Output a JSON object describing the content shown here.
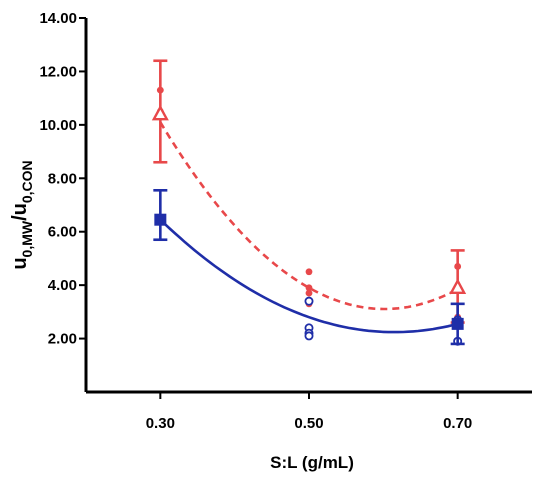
{
  "chart_data": {
    "type": "scatter",
    "xlabel": "S:L (g/mL)",
    "ylabel": {
      "base": "u",
      "sub1": "0,MW",
      "slash": "/u",
      "sub2": "0,CON"
    },
    "xlim": [
      0.2,
      0.8
    ],
    "ylim": [
      0,
      14
    ],
    "x_ticks": [
      "0.30",
      "0.50",
      "0.70"
    ],
    "y_ticks": [
      "2.00",
      "4.00",
      "6.00",
      "8.00",
      "10.00",
      "12.00",
      "14.00"
    ],
    "grid": false,
    "series": [
      {
        "color": "#e8484a",
        "marker": "triangle-open",
        "fit_line": "dashed",
        "means": [
          {
            "x": 0.3,
            "y": 10.4,
            "err_low": 8.6,
            "err_high": 12.4
          },
          {
            "x": 0.7,
            "y": 3.9,
            "err_low": 2.6,
            "err_high": 5.3
          }
        ],
        "points": [
          {
            "x": 0.3,
            "y": 11.3
          },
          {
            "x": 0.3,
            "y": 10.5
          },
          {
            "x": 0.5,
            "y": 4.5
          },
          {
            "x": 0.5,
            "y": 3.9
          },
          {
            "x": 0.5,
            "y": 3.7
          },
          {
            "x": 0.5,
            "y": 3.3
          },
          {
            "x": 0.7,
            "y": 4.7
          },
          {
            "x": 0.7,
            "y": 2.8
          }
        ],
        "fit": [
          {
            "x": 0.3,
            "y": 10.1
          },
          {
            "x": 0.5,
            "y": 3.9
          },
          {
            "x": 0.7,
            "y": 3.85
          }
        ]
      },
      {
        "color": "#1f2ea8",
        "marker": "square-filled",
        "fit_line": "solid",
        "means": [
          {
            "x": 0.3,
            "y": 6.45,
            "err_low": 5.7,
            "err_high": 7.55
          },
          {
            "x": 0.7,
            "y": 2.55,
            "err_low": 1.8,
            "err_high": 3.3
          }
        ],
        "points": [
          {
            "x": 0.5,
            "y": 3.4
          },
          {
            "x": 0.5,
            "y": 2.4
          },
          {
            "x": 0.5,
            "y": 2.2
          },
          {
            "x": 0.5,
            "y": 2.1
          },
          {
            "x": 0.7,
            "y": 2.7
          },
          {
            "x": 0.7,
            "y": 2.6
          },
          {
            "x": 0.7,
            "y": 1.9
          }
        ],
        "fit": [
          {
            "x": 0.3,
            "y": 6.45
          },
          {
            "x": 0.5,
            "y": 2.8
          },
          {
            "x": 0.7,
            "y": 2.55
          }
        ]
      }
    ]
  }
}
